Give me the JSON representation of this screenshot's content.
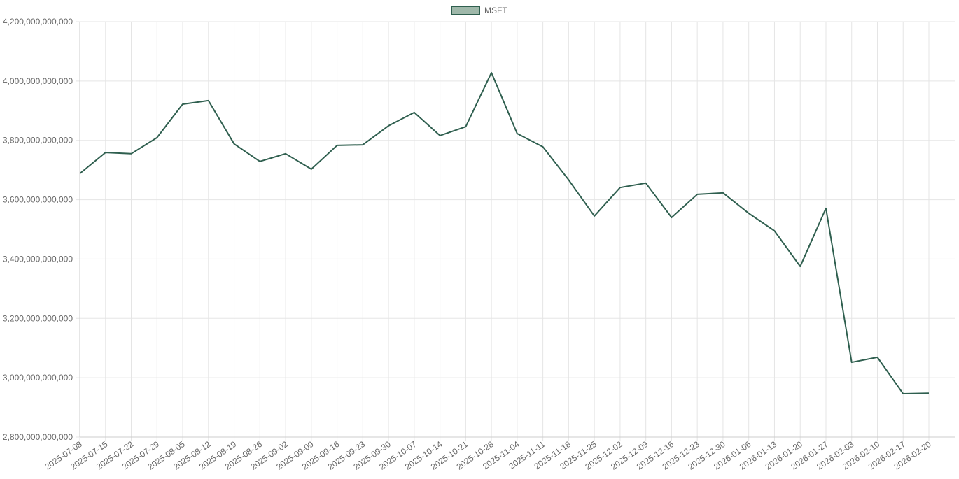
{
  "chart_data": {
    "type": "line",
    "categories": [
      "2025-07-08",
      "2025-07-15",
      "2025-07-22",
      "2025-07-29",
      "2025-08-05",
      "2025-08-12",
      "2025-08-19",
      "2025-08-26",
      "2025-09-02",
      "2025-09-09",
      "2025-09-16",
      "2025-09-23",
      "2025-09-30",
      "2025-10-07",
      "2025-10-14",
      "2025-10-21",
      "2025-10-28",
      "2025-11-04",
      "2025-11-11",
      "2025-11-18",
      "2025-11-25",
      "2025-12-02",
      "2025-12-09",
      "2025-12-16",
      "2025-12-23",
      "2025-12-30",
      "2026-01-06",
      "2026-01-13",
      "2026-01-20",
      "2026-01-27",
      "2026-02-03",
      "2026-02-10",
      "2026-02-17",
      "2026-02-20"
    ],
    "series": [
      {
        "name": "MSFT",
        "color": "#2f5f4f",
        "fill": "#9fb8aa",
        "values": [
          3688000000000,
          3759000000000,
          3755000000000,
          3809000000000,
          3922000000000,
          3934000000000,
          3788000000000,
          3729000000000,
          3755000000000,
          3703000000000,
          3783000000000,
          3785000000000,
          3849000000000,
          3894000000000,
          3816000000000,
          3846000000000,
          4028000000000,
          3823000000000,
          3778000000000,
          3667000000000,
          3545000000000,
          3641000000000,
          3656000000000,
          3540000000000,
          3618000000000,
          3623000000000,
          3554000000000,
          3495000000000,
          3375000000000,
          3571000000000,
          3052000000000,
          3069000000000,
          2946000000000,
          2948000000000
        ]
      }
    ],
    "ylim": [
      2800000000000,
      4200000000000
    ],
    "yticks": [
      {
        "value": 2800000000000,
        "label": "2,800,000,000,000"
      },
      {
        "value": 3000000000000,
        "label": "3,000,000,000,000"
      },
      {
        "value": 3200000000000,
        "label": "3,200,000,000,000"
      },
      {
        "value": 3400000000000,
        "label": "3,400,000,000,000"
      },
      {
        "value": 3600000000000,
        "label": "3,600,000,000,000"
      },
      {
        "value": 3800000000000,
        "label": "3,800,000,000,000"
      },
      {
        "value": 4000000000000,
        "label": "4,000,000,000,000"
      },
      {
        "value": 4200000000000,
        "label": "4,200,000,000,000"
      }
    ],
    "grid": true,
    "legend": "top"
  }
}
